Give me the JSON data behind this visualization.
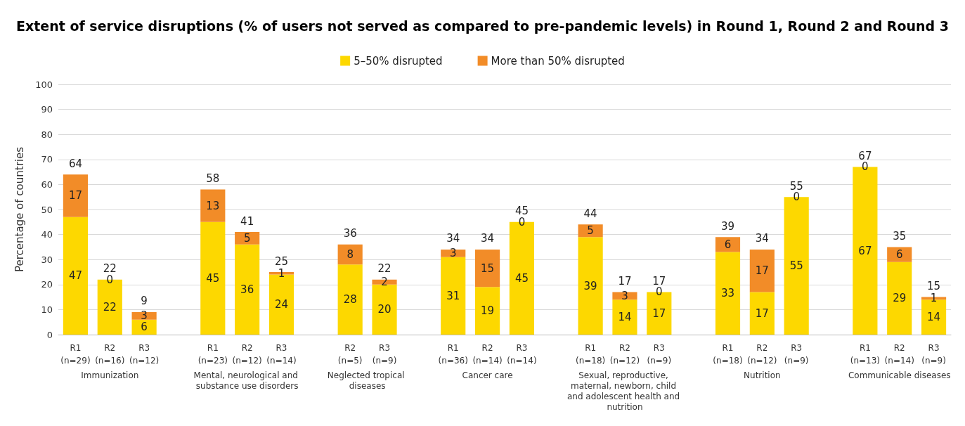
{
  "chart_data": {
    "type": "bar",
    "title": "Extent of service disruptions (% of users not served as compared to pre-pandemic levels) in Round 1, Round 2 and Round 3",
    "ylabel": "Percentage of countries",
    "categories": [
      "R1\n(n=29)",
      "R2\n(n=16)",
      "R3\n(n=12)",
      null,
      "R1\n(n=23)",
      "R2\n(n=12)",
      "R3\n(n=14)",
      null,
      "R2\n(n=5)",
      "R3\n(n=9)",
      null,
      "R1\n(n=36)",
      "R2\n(n=14)",
      "R3\n(n=14)",
      null,
      "R1\n(n=18)",
      "R2\n(n=12)",
      "R3\n(n=9)",
      null,
      "R1\n(n=18)",
      "R2\n(n=12)",
      "R3\n(n=9)",
      null,
      "R1\n(n=13)",
      "R2\n(n=14)",
      "R3\n(n=9)"
    ],
    "series": [
      {
        "name": "5–50% disrupted",
        "color": "#fdd800",
        "values": [
          47,
          22,
          6,
          null,
          45,
          36,
          24,
          null,
          28,
          20,
          null,
          31,
          19,
          45,
          null,
          39,
          14,
          17,
          null,
          33,
          17,
          55,
          null,
          67,
          29,
          14
        ]
      },
      {
        "name": "More than 50% disrupted",
        "color": "#f28c28",
        "values": [
          17,
          0,
          3,
          null,
          13,
          5,
          1,
          null,
          8,
          2,
          null,
          3,
          15,
          0,
          null,
          5,
          3,
          0,
          null,
          6,
          17,
          0,
          null,
          0,
          6,
          1
        ]
      }
    ],
    "totals": [
      "64",
      "22",
      "9",
      null,
      "58",
      "41",
      "25",
      null,
      "36",
      "22",
      null,
      "34",
      "34",
      "45",
      null,
      "44",
      "17",
      "17",
      null,
      "39",
      "34",
      "55",
      null,
      "67",
      "35",
      "15"
    ],
    "annotations": [
      "Immunization",
      "Mental, neurological and substance use disorders",
      "Neglected tropical diseases",
      "Cancer care",
      "Sexual, reproductive, maternal, newborn, child and adolescent health and nutrition",
      "Nutrition",
      "Communicable diseases"
    ],
    "stacked": true,
    "data_labels": true,
    "ylim": [
      0,
      100
    ],
    "yticks": [
      0,
      10,
      20,
      30,
      40,
      50,
      60,
      70,
      80,
      90,
      100
    ],
    "grid": "y",
    "legend": "top"
  }
}
